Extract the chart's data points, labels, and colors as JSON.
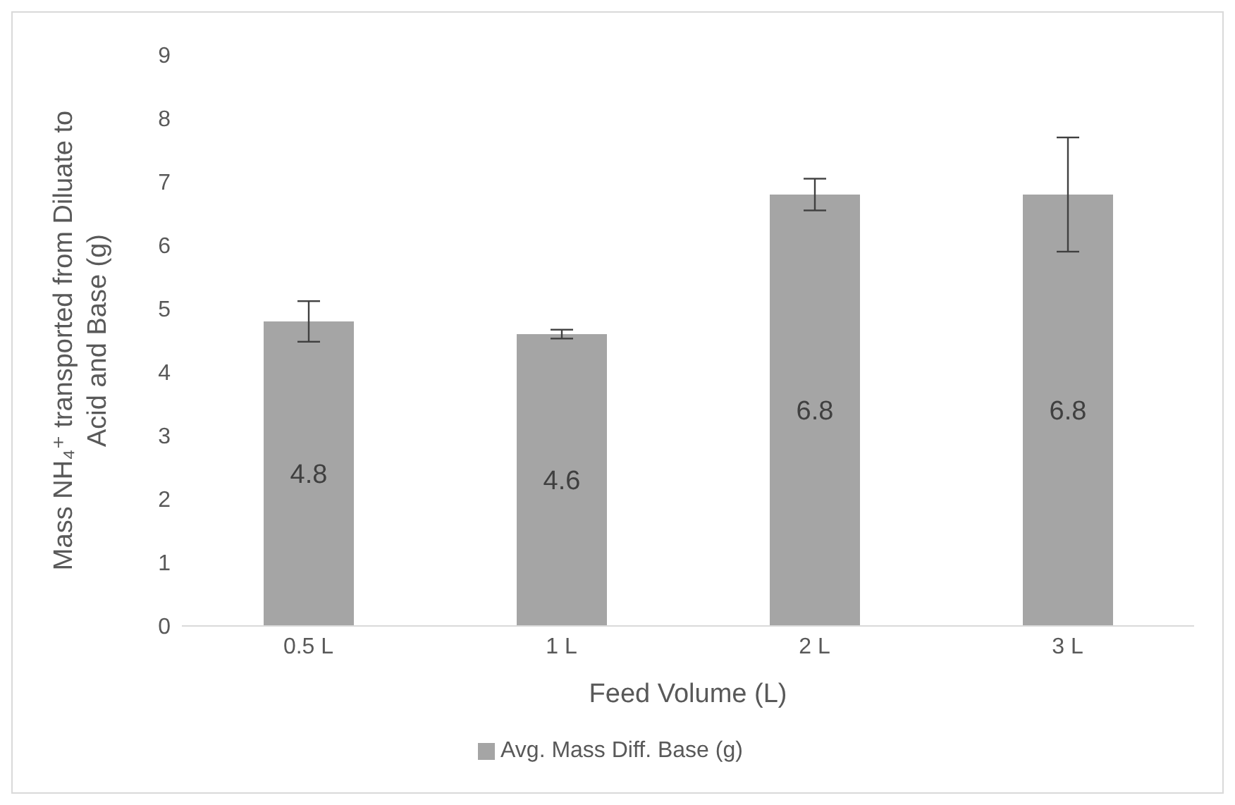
{
  "chart_data": {
    "type": "bar",
    "xlabel": "Feed Volume (L)",
    "ylabel": "Mass NH₄⁺ transported from Diluate to Acid and Base (g)",
    "categories": [
      "0.5 L",
      "1 L",
      "2 L",
      "3 L"
    ],
    "series": [
      {
        "name": "Avg. Mass Diff. Base (g)",
        "color": "#a5a5a5",
        "values": [
          4.8,
          4.6,
          6.8,
          6.8
        ],
        "errors": [
          0.32,
          0.07,
          0.25,
          0.9
        ]
      }
    ],
    "ylim": [
      0,
      9
    ],
    "yticks": [
      0,
      1,
      2,
      3,
      4,
      5,
      6,
      7,
      8,
      9
    ],
    "legend": "bottom",
    "data_labels": true
  }
}
